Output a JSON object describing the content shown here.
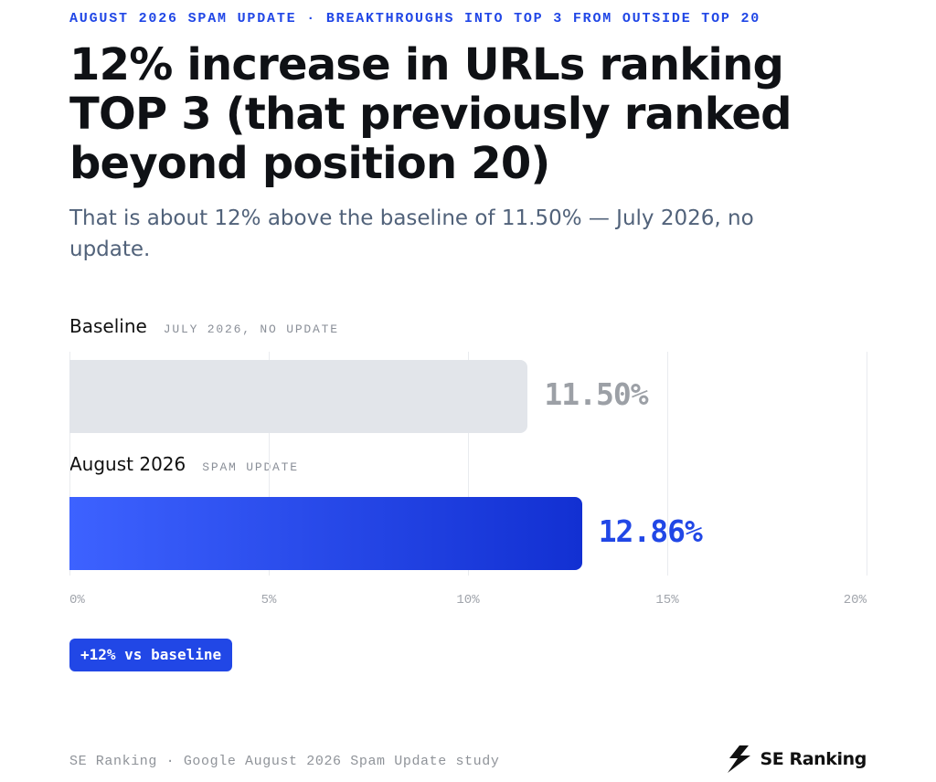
{
  "header": {
    "kicker": "AUGUST 2026 SPAM UPDATE · BREAKTHROUGHS INTO TOP 3 FROM OUTSIDE TOP 20",
    "title": "12% increase in URLs ranking TOP 3 (that previously ranked beyond position 20)",
    "subtitle": "That is about 12% above the baseline of 11.50% — July 2026, no update."
  },
  "chart_data": {
    "type": "bar",
    "orientation": "horizontal",
    "categories": [
      "Baseline",
      "August 2026"
    ],
    "category_tags": [
      "JULY 2026, NO UPDATE",
      "SPAM UPDATE"
    ],
    "values": [
      11.5,
      12.86
    ],
    "value_labels": [
      "11.50%",
      "12.86%"
    ],
    "xlim": [
      0,
      20
    ],
    "x_ticks": [
      "0%",
      "5%",
      "10%",
      "15%",
      "20%"
    ],
    "grid": true,
    "colors": {
      "baseline_bar": "#e2e5ea",
      "baseline_label": "#9ca0a6",
      "update_bar": "#2342e8",
      "update_label": "#2147e6"
    }
  },
  "badge": {
    "label": "+12% vs baseline"
  },
  "footer": {
    "source": "SE Ranking · Google August 2026 Spam Update study",
    "brand": "SE Ranking",
    "brand_icon": "se-ranking-logo-icon"
  }
}
